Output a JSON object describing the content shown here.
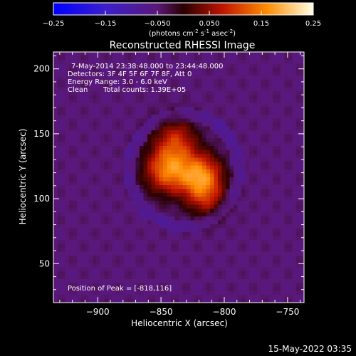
{
  "chart_data": {
    "type": "heatmap",
    "title": "Reconstructed RHESSI Image",
    "xlabel": "Heliocentric X (arcsec)",
    "ylabel": "Heliocentric Y (arcsec)",
    "xlim": [
      -935,
      -737
    ],
    "ylim": [
      20,
      213
    ],
    "x_ticks": [
      -900,
      -850,
      -800,
      -750
    ],
    "y_ticks": [
      50,
      100,
      150,
      200
    ],
    "colorbar": {
      "range": [
        -0.25,
        0.25
      ],
      "ticks": [
        "-0.25",
        "-0.15",
        "-0.050",
        "0.050",
        "0.15",
        "0.25"
      ],
      "units_text": "(photons cm",
      "units_exp1": "-2",
      "units_mid": " s",
      "units_exp2": "-1",
      "units_mid2": " asec",
      "units_exp3": "-2",
      "units_end": ")"
    },
    "info_lines": [
      "7-May-2014 23:38:48.000 to 23:44:48.000",
      "Detectors: 3F 4F 5F 6F 7F 8F, Att 0",
      "Energy Range: 3.0 - 6.0 keV"
    ],
    "clean_label": "Clean",
    "total_counts": "Total counts: 1.39E+05",
    "peak_text": "Position of Peak = [-818,116]",
    "peak": {
      "x": -818,
      "y": 116
    },
    "sources": [
      {
        "x": -845,
        "y": 122,
        "amplitude": 0.17,
        "sigma": 13
      },
      {
        "x": -818,
        "y": 118,
        "amplitude": 0.17,
        "sigma": 12
      },
      {
        "x": -838,
        "y": 146,
        "amplitude": 0.1,
        "sigma": 12
      },
      {
        "x": -815,
        "y": 100,
        "amplitude": 0.08,
        "sigma": 11
      }
    ],
    "background_level": -0.05,
    "footer_date": "15-May-2022 03:35"
  }
}
